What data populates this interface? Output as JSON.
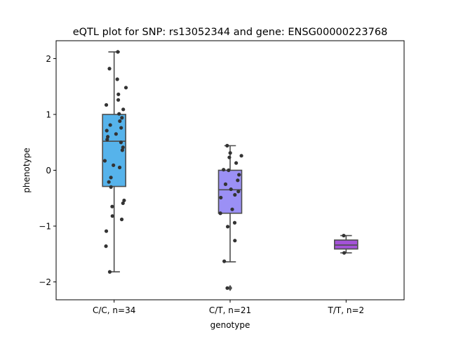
{
  "chart_data": {
    "type": "box",
    "title": "eQTL plot for SNP: rs13052344 and gene: ENSG00000223768",
    "xlabel": "genotype",
    "ylabel": "phenotype",
    "ylim": [
      -2.32,
      2.32
    ],
    "yticks": [
      -2,
      -1,
      0,
      1,
      2
    ],
    "ytick_labels": [
      "−2",
      "−1",
      "0",
      "1",
      "2"
    ],
    "grid": false,
    "legend": "none",
    "categories": [
      "C/C, n=34",
      "C/T, n=21",
      "T/T, n=2"
    ],
    "boxes": [
      {
        "category": "C/C, n=34",
        "color": "#56b3eb",
        "q1": -0.29,
        "median": 0.52,
        "q3": 1.0,
        "whisker_low": -1.82,
        "whisker_high": 2.12,
        "outliers": []
      },
      {
        "category": "C/T, n=21",
        "color": "#9b90f5",
        "q1": -0.77,
        "median": -0.35,
        "q3": 0.0,
        "whisker_low": -1.64,
        "whisker_high": 0.44,
        "outliers": [
          -2.11
        ]
      },
      {
        "category": "T/T, n=2",
        "color": "#a453d8",
        "q1": -1.41,
        "median": -1.34,
        "q3": -1.25,
        "whisker_low": -1.48,
        "whisker_high": -1.17,
        "outliers": []
      }
    ],
    "points": [
      {
        "category": "C/C, n=34",
        "values": [
          2.12,
          1.82,
          1.63,
          1.48,
          1.36,
          1.26,
          1.17,
          1.09,
          1.01,
          0.94,
          0.88,
          0.81,
          0.76,
          0.71,
          0.65,
          0.6,
          0.55,
          0.5,
          0.41,
          0.36,
          0.17,
          0.09,
          0.05,
          -0.13,
          -0.21,
          -0.3,
          -0.54,
          -0.59,
          -0.65,
          -0.82,
          -0.88,
          -1.09,
          -1.36,
          -1.82
        ]
      },
      {
        "category": "C/T, n=21",
        "values": [
          0.44,
          0.31,
          0.26,
          0.23,
          0.13,
          0.01,
          0.0,
          -0.08,
          -0.18,
          -0.25,
          -0.34,
          -0.38,
          -0.44,
          -0.49,
          -0.7,
          -0.77,
          -0.94,
          -1.01,
          -1.26,
          -1.63,
          -2.11
        ]
      },
      {
        "category": "T/T, n=2",
        "values": [
          -1.17,
          -1.48
        ]
      }
    ]
  }
}
